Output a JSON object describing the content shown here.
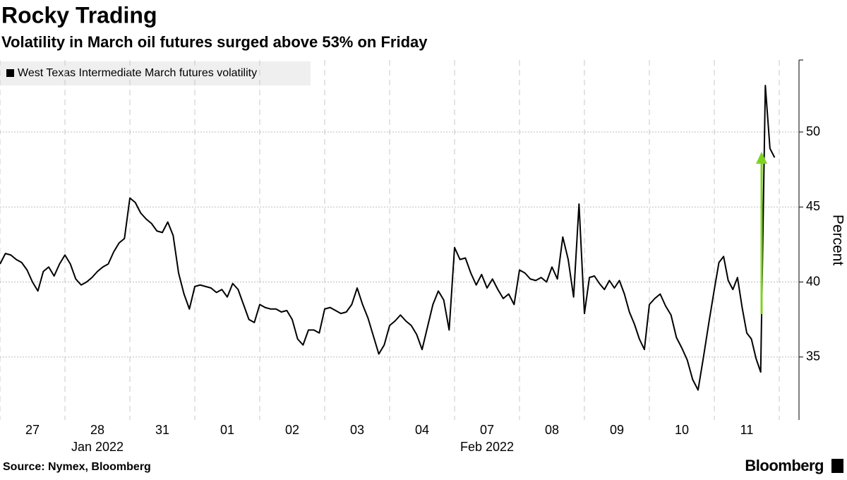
{
  "chart_data": {
    "type": "line",
    "title": "Rocky Trading",
    "subtitle": "Volatility in March oil futures surged above 53% on Friday",
    "y_label": "Percent",
    "source": "Source: Nymex, Bloomberg",
    "brand": "Bloomberg",
    "categories": [
      "27",
      "28",
      "31",
      "01",
      "02",
      "03",
      "04",
      "07",
      "08",
      "09",
      "10",
      "11"
    ],
    "sublabels": [
      null,
      "Jan 2022",
      null,
      null,
      null,
      null,
      null,
      "Feb 2022",
      null,
      null,
      null,
      null
    ],
    "series": [
      {
        "name": "West Texas Intermediate March futures volatility",
        "color": "#000000",
        "values": [
          [
            41.2,
            41.9,
            41.8,
            41.5,
            41.3,
            40.8,
            40.0,
            39.4,
            40.7,
            41.0,
            40.4,
            41.2
          ],
          [
            41.8,
            41.2,
            40.2,
            39.8,
            40.0,
            40.3,
            40.7,
            41.0,
            41.2,
            42.0,
            42.6,
            42.9
          ],
          [
            45.6,
            45.3,
            44.6,
            44.2,
            43.9,
            43.4,
            43.3,
            44.0,
            43.1,
            40.6,
            39.2,
            38.2
          ],
          [
            39.7,
            39.8,
            39.7,
            39.6,
            39.3,
            39.5,
            39.0,
            39.9,
            39.5,
            38.5,
            37.5,
            37.3
          ],
          [
            38.5,
            38.3,
            38.2,
            38.2,
            38.0,
            38.1,
            37.5,
            36.2,
            35.8,
            36.8,
            36.8,
            36.6
          ],
          [
            38.2,
            38.3,
            38.1,
            37.9,
            38.0,
            38.5,
            39.6,
            38.5,
            37.6,
            36.4,
            35.2,
            35.8
          ],
          [
            37.1,
            37.4,
            37.8,
            37.4,
            37.1,
            36.5,
            35.5,
            37.0,
            38.5,
            39.4,
            38.8,
            36.8
          ],
          [
            42.3,
            41.5,
            41.6,
            40.6,
            39.8,
            40.5,
            39.6,
            40.2,
            39.5,
            38.9,
            39.2,
            38.5
          ],
          [
            40.8,
            40.6,
            40.2,
            40.1,
            40.3,
            40.0,
            41.0,
            40.2,
            43.0,
            41.5,
            39.0,
            45.2
          ],
          [
            37.9,
            40.3,
            40.4,
            39.9,
            39.5,
            40.1,
            39.6,
            40.1,
            39.2,
            38.0,
            37.2,
            36.2,
            35.5
          ],
          [
            38.5,
            38.9,
            39.2,
            38.4,
            37.8,
            36.3,
            35.6,
            34.8,
            33.5,
            32.8,
            35.0,
            37.3
          ],
          [
            39.5,
            41.3,
            41.7,
            40.1,
            39.5,
            40.3,
            38.3,
            36.6,
            36.2,
            34.9,
            34.0,
            53.1,
            48.9,
            48.3
          ]
        ]
      }
    ],
    "ylim": [
      30.8,
      54.8
    ],
    "yticks": [
      35,
      40,
      45,
      50
    ],
    "grid": true
  }
}
